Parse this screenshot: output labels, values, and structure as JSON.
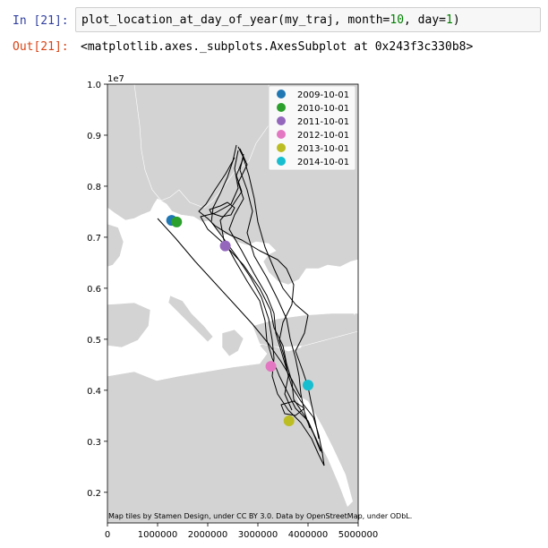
{
  "cell": {
    "in_prompt": "In [21]:",
    "out_prompt": "Out[21]:",
    "code_func": "plot_location_at_day_of_year(my_traj, month=",
    "code_month": "10",
    "code_mid": ", day=",
    "code_day": "1",
    "code_end": ")",
    "output_text": "<matplotlib.axes._subplots.AxesSubplot at 0x243f3c330b8>"
  },
  "chart_data": {
    "type": "scatter",
    "y_offset_label": "1e7",
    "ylim": [
      0.14,
      1.0
    ],
    "xlim": [
      0,
      5000000
    ],
    "y_ticks": [
      "1.0",
      "0.9",
      "0.8",
      "0.7",
      "0.6",
      "0.5",
      "0.4",
      "0.3",
      "0.2"
    ],
    "x_ticks": [
      "0",
      "1000000",
      "2000000",
      "3000000",
      "4000000",
      "5000000"
    ],
    "attribution": "Map tiles by Stamen Design, under CC BY 3.0. Data by OpenStreetMap, under ODbL.",
    "legend_position": "top-right",
    "series": [
      {
        "name": "2009-10-01",
        "color": "#1f77b4",
        "x": 1280000,
        "y": 0.733
      },
      {
        "name": "2010-10-01",
        "color": "#2ca02c",
        "x": 1380000,
        "y": 0.73
      },
      {
        "name": "2011-10-01",
        "color": "#9467bd",
        "x": 2350000,
        "y": 0.683
      },
      {
        "name": "2012-10-01",
        "color": "#e377c2",
        "x": 3260000,
        "y": 0.447
      },
      {
        "name": "2013-10-01",
        "color": "#bcbd22",
        "x": 3620000,
        "y": 0.34
      },
      {
        "name": "2014-10-01",
        "color": "#17becf",
        "x": 4000000,
        "y": 0.41
      }
    ]
  }
}
